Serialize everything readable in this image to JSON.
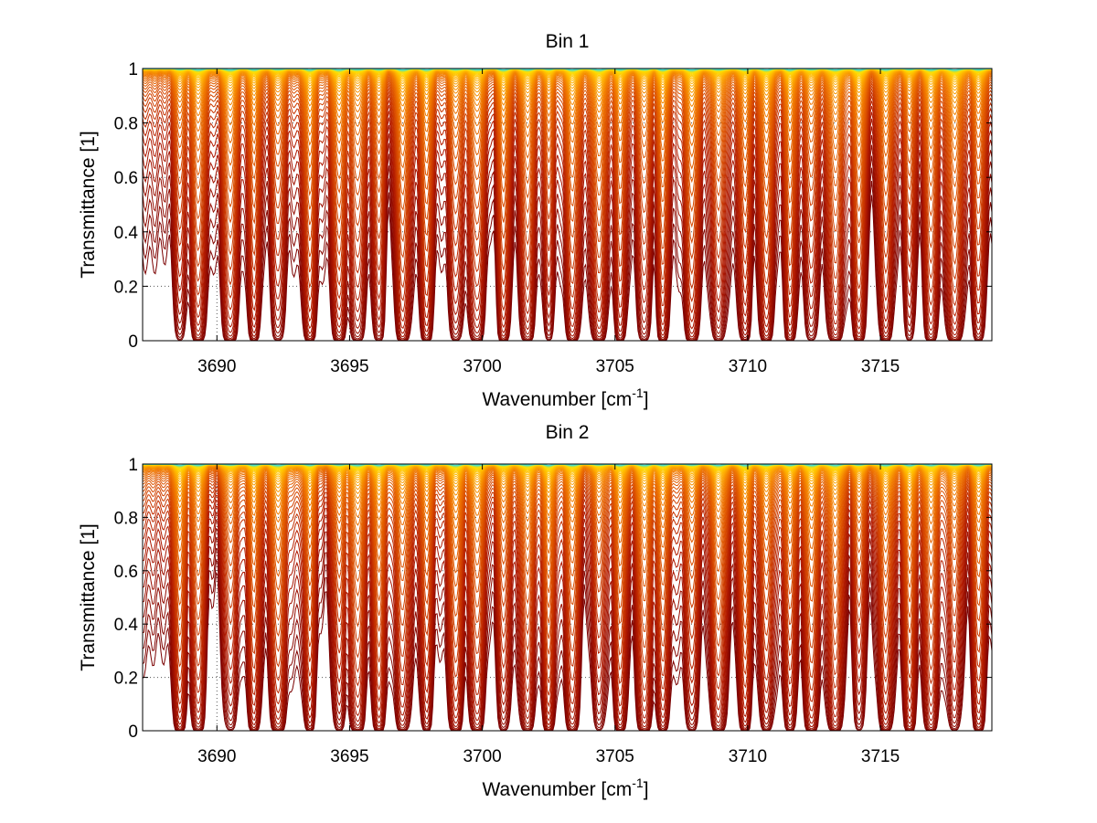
{
  "chart_data": [
    {
      "type": "line",
      "title": "Bin 1",
      "xlabel_main": "Wavenumber [cm",
      "xlabel_sup": "-1",
      "xlabel_end": "]",
      "ylabel": "Transmittance [1]",
      "xlim": [
        3687.2,
        3719.2
      ],
      "ylim": [
        0,
        1
      ],
      "xticks": [
        3690,
        3695,
        3700,
        3705,
        3710,
        3715
      ],
      "yticks": [
        0,
        0.2,
        0.4,
        0.6,
        0.8,
        1
      ],
      "xtick_labels": [
        "3690",
        "3695",
        "3700",
        "3705",
        "3710",
        "3715"
      ],
      "ytick_labels": [
        "0",
        "0.2",
        "0.4",
        "0.6",
        "0.8",
        "1"
      ],
      "grid": true,
      "n_curves": 50,
      "colormap": [
        "#7a0000",
        "#b01800",
        "#d84a00",
        "#f07800",
        "#ffb000",
        "#ffe000",
        "#40e0d0"
      ],
      "absorption_lines": [
        3688.6,
        3689.3,
        3690.5,
        3691.4,
        3692.3,
        3693.5,
        3694.6,
        3695.3,
        3696.1,
        3697.0,
        3697.9,
        3699.0,
        3699.8,
        3700.8,
        3701.7,
        3702.5,
        3703.4,
        3704.4,
        3705.2,
        3706.1,
        3706.8,
        3707.9,
        3708.9,
        3709.9,
        3710.7,
        3711.6,
        3712.4,
        3713.3,
        3714.2,
        3715.2,
        3716.1,
        3716.9,
        3717.8,
        3718.7
      ]
    },
    {
      "type": "line",
      "title": "Bin 2",
      "xlabel_main": "Wavenumber [cm",
      "xlabel_sup": "-1",
      "xlabel_end": "]",
      "ylabel": "Transmittance [1]",
      "xlim": [
        3687.2,
        3719.2
      ],
      "ylim": [
        0,
        1
      ],
      "xticks": [
        3690,
        3695,
        3700,
        3705,
        3710,
        3715
      ],
      "yticks": [
        0,
        0.2,
        0.4,
        0.6,
        0.8,
        1
      ],
      "xtick_labels": [
        "3690",
        "3695",
        "3700",
        "3705",
        "3710",
        "3715"
      ],
      "ytick_labels": [
        "0",
        "0.2",
        "0.4",
        "0.6",
        "0.8",
        "1"
      ],
      "grid": true,
      "n_curves": 50,
      "colormap": [
        "#7a0000",
        "#b01800",
        "#d84a00",
        "#f07800",
        "#ffb000",
        "#ffe000",
        "#40e0d0"
      ],
      "absorption_lines": [
        3688.6,
        3689.3,
        3690.5,
        3691.4,
        3692.3,
        3693.5,
        3694.6,
        3695.3,
        3696.1,
        3697.0,
        3697.9,
        3699.0,
        3699.8,
        3700.8,
        3701.7,
        3702.5,
        3703.4,
        3704.4,
        3705.2,
        3706.1,
        3706.8,
        3707.9,
        3708.9,
        3709.9,
        3710.7,
        3711.6,
        3712.4,
        3713.3,
        3714.2,
        3715.2,
        3716.1,
        3716.9,
        3717.8,
        3718.7
      ]
    }
  ]
}
